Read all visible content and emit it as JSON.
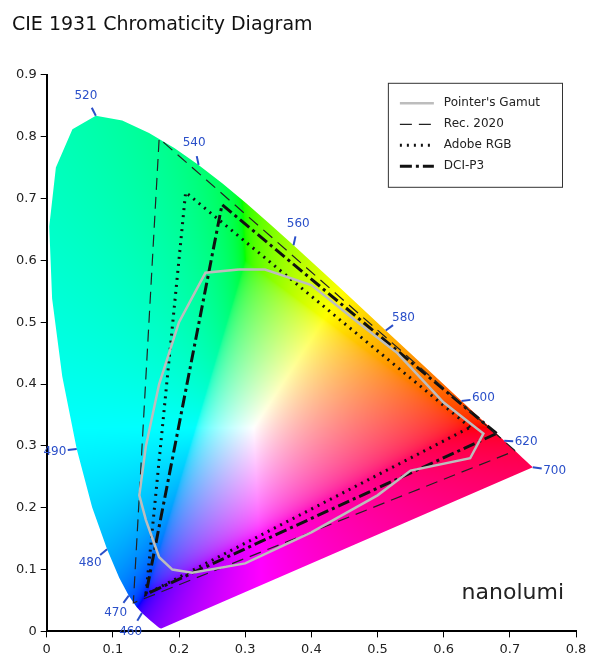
{
  "chart_data": {
    "type": "scatter",
    "title": "CIE 1931 Chromaticity Diagram",
    "xlim": [
      0,
      0.8
    ],
    "xticks": [
      0,
      0.1,
      0.2,
      0.3,
      0.4,
      0.5,
      0.6,
      0.7,
      0.8
    ],
    "ylim": [
      0,
      0.9
    ],
    "yticks": [
      0,
      0.1,
      0.2,
      0.3,
      0.4,
      0.5,
      0.6,
      0.7,
      0.8,
      0.9
    ],
    "grid": false,
    "legend": "upper right",
    "spectral_locus": {
      "x": [
        0.1741,
        0.1733,
        0.1714,
        0.1689,
        0.1644,
        0.1566,
        0.144,
        0.1355,
        0.1241,
        0.1096,
        0.0913,
        0.0687,
        0.0454,
        0.0235,
        0.0082,
        0.0039,
        0.0139,
        0.0389,
        0.0743,
        0.1142,
        0.1547,
        0.1929,
        0.2296,
        0.2658,
        0.3016,
        0.3373,
        0.3731,
        0.4441,
        0.5125,
        0.5752,
        0.627,
        0.6658,
        0.6915,
        0.7079,
        0.719,
        0.726,
        0.73,
        0.7334,
        0.7347
      ],
      "y": [
        0.005,
        0.0048,
        0.0051,
        0.0069,
        0.0109,
        0.0177,
        0.0297,
        0.0399,
        0.0578,
        0.0868,
        0.1327,
        0.2007,
        0.295,
        0.4127,
        0.5384,
        0.6548,
        0.7502,
        0.812,
        0.8338,
        0.8262,
        0.8059,
        0.7816,
        0.7543,
        0.7243,
        0.6923,
        0.6589,
        0.6245,
        0.5547,
        0.4866,
        0.4242,
        0.3725,
        0.334,
        0.3083,
        0.292,
        0.2809,
        0.274,
        0.27,
        0.2666,
        0.2653
      ]
    },
    "wavelength_ticks": [
      {
        "value": 460,
        "x": 0.144,
        "y": 0.0297
      },
      {
        "value": 470,
        "x": 0.1241,
        "y": 0.0578
      },
      {
        "value": 480,
        "x": 0.0913,
        "y": 0.1327
      },
      {
        "value": 490,
        "x": 0.0454,
        "y": 0.295
      },
      {
        "value": 520,
        "x": 0.0743,
        "y": 0.8338
      },
      {
        "value": 540,
        "x": 0.2296,
        "y": 0.7543
      },
      {
        "value": 560,
        "x": 0.3731,
        "y": 0.6245
      },
      {
        "value": 580,
        "x": 0.5125,
        "y": 0.4866
      },
      {
        "value": 600,
        "x": 0.627,
        "y": 0.3725
      },
      {
        "value": 620,
        "x": 0.6915,
        "y": 0.3083
      },
      {
        "value": 700,
        "x": 0.7347,
        "y": 0.2653
      }
    ],
    "series": [
      {
        "name": "Pointer's Gamut",
        "color": "#bdbdbd",
        "line_style": "solid",
        "x": [
          0.29,
          0.33,
          0.4,
          0.47,
          0.53,
          0.6,
          0.66,
          0.64,
          0.55,
          0.5,
          0.4,
          0.3,
          0.22,
          0.19,
          0.17,
          0.15,
          0.14,
          0.15,
          0.17,
          0.2,
          0.24,
          0.29
        ],
        "y": [
          0.585,
          0.585,
          0.56,
          0.5,
          0.45,
          0.37,
          0.32,
          0.28,
          0.26,
          0.22,
          0.16,
          0.11,
          0.095,
          0.1,
          0.12,
          0.18,
          0.22,
          0.3,
          0.4,
          0.5,
          0.58,
          0.585
        ]
      },
      {
        "name": "Rec. 2020",
        "color": "#222222",
        "line_style": "dashed",
        "x": [
          0.708,
          0.17,
          0.131,
          0.708
        ],
        "y": [
          0.292,
          0.797,
          0.046,
          0.292
        ]
      },
      {
        "name": "Adobe RGB",
        "color": "#111111",
        "line_style": "dotted",
        "x": [
          0.64,
          0.21,
          0.15,
          0.64
        ],
        "y": [
          0.33,
          0.71,
          0.06,
          0.33
        ]
      },
      {
        "name": "DCI-P3",
        "color": "#111111",
        "line_style": "dashdot",
        "x": [
          0.68,
          0.265,
          0.15,
          0.68
        ],
        "y": [
          0.32,
          0.69,
          0.06,
          0.32
        ]
      }
    ],
    "annotations": [
      "nanolumi"
    ]
  }
}
